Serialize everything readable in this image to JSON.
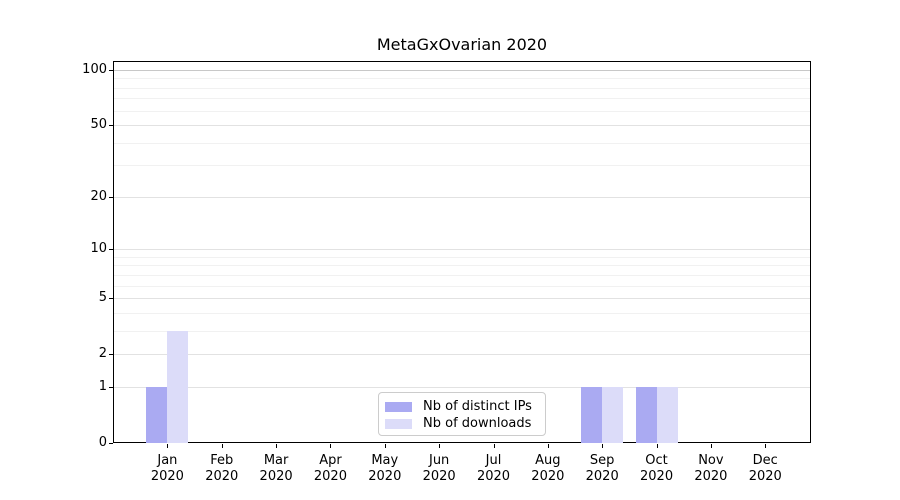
{
  "chart_data": {
    "type": "bar",
    "title": "MetaGxOvarian 2020",
    "categories": [
      "Jan 2020",
      "Feb 2020",
      "Mar 2020",
      "Apr 2020",
      "May 2020",
      "Jun 2020",
      "Jul 2020",
      "Aug 2020",
      "Sep 2020",
      "Oct 2020",
      "Nov 2020",
      "Dec 2020"
    ],
    "series": [
      {
        "name": "Nb of distinct IPs",
        "color": "#aaaaf2",
        "values": [
          1,
          0,
          0,
          0,
          0,
          0,
          0,
          0,
          1,
          1,
          0,
          0
        ]
      },
      {
        "name": "Nb of downloads",
        "color": "#dcdcf9",
        "values": [
          3,
          0,
          0,
          0,
          0,
          0,
          0,
          0,
          1,
          1,
          0,
          0
        ]
      }
    ],
    "xlabel": "",
    "ylabel": "",
    "yscale": "pseudo-log: position proportional to log10(value+1)",
    "ytick_values": [
      0,
      1,
      2,
      5,
      10,
      20,
      50,
      100
    ],
    "ytick_labels": [
      "0",
      "1",
      "2",
      "5",
      "10",
      "20",
      "50",
      "100"
    ],
    "ytick_minor_values": [
      3,
      4,
      6,
      7,
      8,
      9,
      30,
      40,
      60,
      70,
      80,
      90
    ],
    "ylim": [
      0,
      112
    ],
    "grid": "horizontal, major and minor",
    "legend_position": "lower center, inside axes"
  },
  "colors": {
    "background": "#ffffff",
    "axis": "#000000",
    "grid_major": "#e2e2e2",
    "grid_minor": "#f1f1f1",
    "grid_top_line": "#c8c8c8",
    "legend_border": "#cccccc",
    "bar_distinct_ips": "#aaaaf2",
    "bar_downloads": "#dcdcf9"
  }
}
